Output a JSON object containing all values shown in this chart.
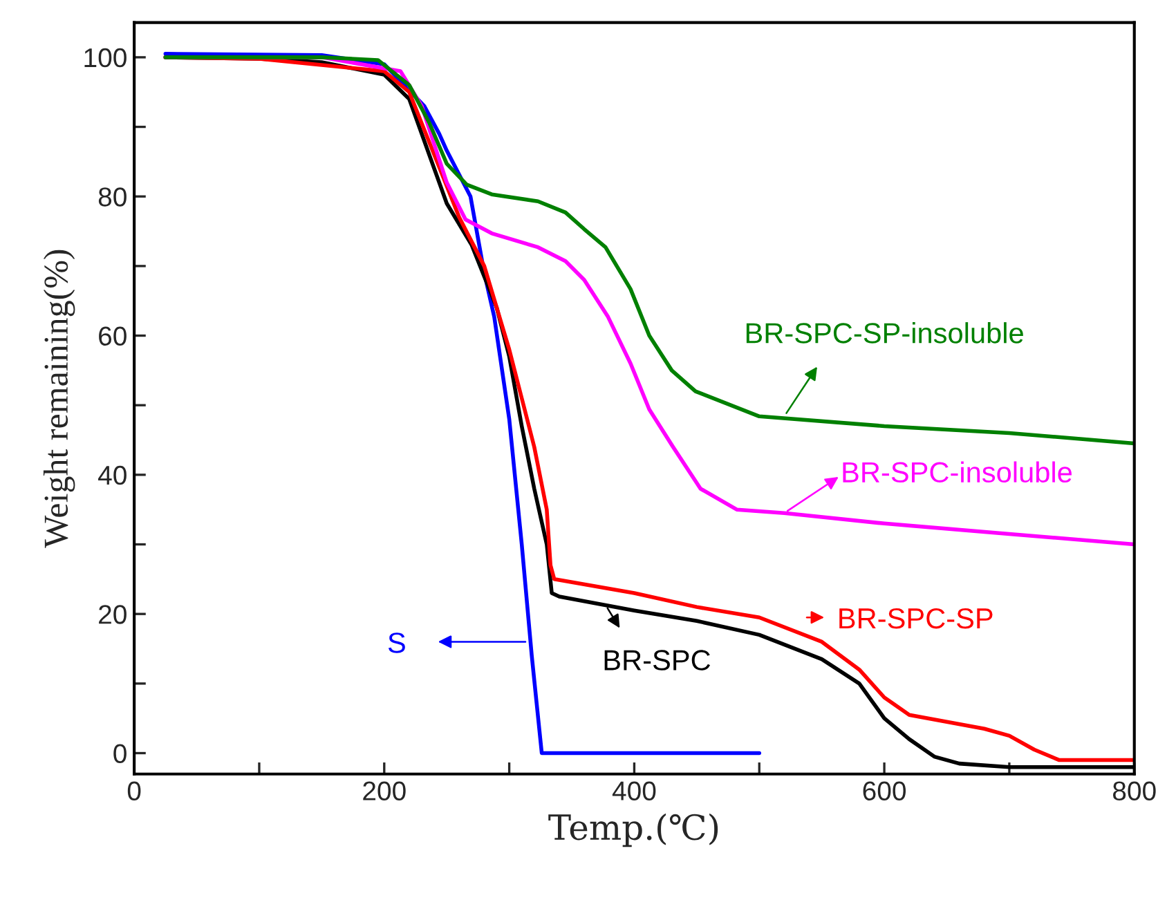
{
  "chart_data": {
    "type": "line",
    "xlabel": "Temp.(℃)",
    "ylabel": "Weight remaining(%)",
    "xlim": [
      0,
      800
    ],
    "ylim": [
      -3,
      105
    ],
    "xticks": [
      0,
      {
        "value": 100,
        "label": null
      },
      200,
      {
        "value": 300,
        "label": null
      },
      400,
      {
        "value": 500,
        "label": null
      },
      600,
      {
        "value": 700,
        "label": null
      },
      800
    ],
    "yticks": [
      0,
      {
        "value": 10,
        "label": null
      },
      20,
      {
        "value": 30,
        "label": null
      },
      40,
      {
        "value": 50,
        "label": null
      },
      60,
      {
        "value": 70,
        "label": null
      },
      80,
      {
        "value": 90,
        "label": null
      },
      100
    ],
    "grid": false,
    "legend": "right",
    "marker": "none",
    "line_style": "solid",
    "series": [
      {
        "name": "S",
        "color": "#0000ff",
        "x": [
          25,
          150,
          200,
          213,
          232,
          244,
          250,
          269,
          280,
          288,
          300,
          310,
          318,
          326,
          330,
          400,
          500
        ],
        "values": [
          100.5,
          100.3,
          99,
          96.6,
          93,
          89,
          86.6,
          80,
          69,
          62.7,
          48,
          30,
          14,
          0,
          0,
          0,
          0
        ]
      },
      {
        "name": "BR-SPC",
        "color": "#000000",
        "x": [
          25,
          100,
          150,
          200,
          220,
          240,
          250,
          270,
          290,
          300,
          310,
          320,
          330,
          334,
          340,
          400,
          450,
          500,
          550,
          580,
          600,
          620,
          640,
          660,
          700,
          800
        ],
        "values": [
          100,
          99.8,
          99.3,
          97.5,
          94,
          84,
          79,
          73,
          64,
          57,
          47,
          38,
          30,
          23,
          22.5,
          20.5,
          19,
          17,
          13.5,
          10,
          5,
          2,
          -0.5,
          -1.5,
          -2,
          -2
        ]
      },
      {
        "name": "BR-SPC-SP",
        "color": "#ff0000",
        "x": [
          25,
          100,
          200,
          220,
          240,
          260,
          280,
          300,
          310,
          320,
          330,
          333,
          336,
          400,
          450,
          500,
          550,
          580,
          600,
          620,
          650,
          680,
          700,
          720,
          740,
          800
        ],
        "values": [
          100,
          99.8,
          98,
          95,
          86,
          77,
          70,
          58,
          51,
          44,
          35,
          27,
          25,
          23,
          21,
          19.5,
          16,
          12,
          8,
          5.5,
          4.5,
          3.5,
          2.5,
          0.5,
          -1,
          -1
        ]
      },
      {
        "name": "BR-SPC-insoluble",
        "color": "#ff00ff",
        "x": [
          25,
          150,
          213,
          230,
          250,
          265,
          286,
          323,
          345,
          360,
          379,
          397,
          412,
          431,
          453,
          482,
          520,
          600,
          700,
          800
        ],
        "values": [
          100,
          100,
          98,
          93,
          82,
          76.7,
          74.7,
          72.7,
          70.7,
          68,
          62.7,
          56,
          49.4,
          44,
          38,
          35,
          34.5,
          33,
          31.5,
          30
        ]
      },
      {
        "name": "BR-SPC-SP-insoluble",
        "color": "#008000",
        "x": [
          25,
          150,
          195,
          220,
          236,
          250,
          266,
          286,
          323,
          345,
          360,
          377,
          397,
          412,
          430,
          449,
          500,
          600,
          700,
          800
        ],
        "values": [
          100,
          100,
          99.6,
          96,
          90.6,
          84.7,
          81.7,
          80.3,
          79.3,
          77.7,
          75.3,
          72.7,
          66.7,
          60,
          55,
          52,
          48.4,
          47,
          46,
          44.5
        ]
      }
    ]
  }
}
